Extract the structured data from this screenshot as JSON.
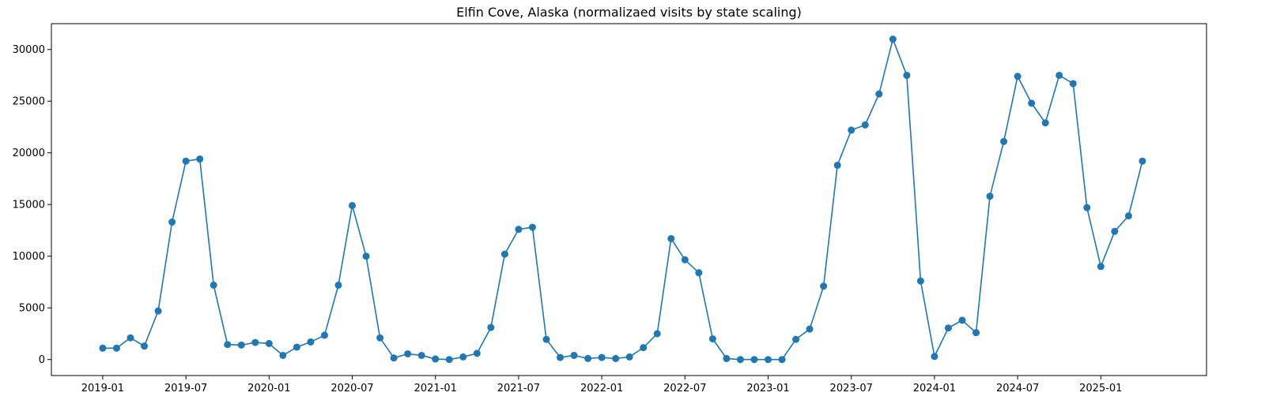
{
  "chart_data": {
    "type": "line",
    "title": "Elfin Cove, Alaska (normalizaed visits by state scaling)",
    "xlabel": "",
    "ylabel": "",
    "color": "#1f77b4",
    "grid": false,
    "x": [
      "2019-01",
      "2019-02",
      "2019-03",
      "2019-04",
      "2019-05",
      "2019-06",
      "2019-07",
      "2019-08",
      "2019-09",
      "2019-10",
      "2019-11",
      "2019-12",
      "2020-01",
      "2020-02",
      "2020-03",
      "2020-04",
      "2020-05",
      "2020-06",
      "2020-07",
      "2020-08",
      "2020-09",
      "2020-10",
      "2020-11",
      "2020-12",
      "2021-01",
      "2021-02",
      "2021-03",
      "2021-04",
      "2021-05",
      "2021-06",
      "2021-07",
      "2021-08",
      "2021-09",
      "2021-10",
      "2021-11",
      "2021-12",
      "2022-01",
      "2022-02",
      "2022-03",
      "2022-04",
      "2022-05",
      "2022-06",
      "2022-07",
      "2022-08",
      "2022-09",
      "2022-10",
      "2022-11",
      "2022-12",
      "2023-01",
      "2023-02",
      "2023-03",
      "2023-04",
      "2023-05",
      "2023-06",
      "2023-07",
      "2023-08",
      "2023-09",
      "2023-10",
      "2023-11",
      "2023-12",
      "2024-01",
      "2024-02",
      "2024-03",
      "2024-04",
      "2024-05",
      "2024-06",
      "2024-07",
      "2024-08",
      "2024-09",
      "2024-10",
      "2024-11",
      "2024-12",
      "2025-01",
      "2025-02",
      "2025-03",
      "2025-04"
    ],
    "values": [
      1100,
      1100,
      2100,
      1300,
      4700,
      13300,
      19200,
      19400,
      7200,
      1450,
      1400,
      1650,
      1550,
      400,
      1200,
      1700,
      2350,
      7200,
      14900,
      10000,
      2100,
      150,
      550,
      400,
      50,
      0,
      250,
      600,
      3100,
      10200,
      12600,
      12800,
      1950,
      200,
      400,
      100,
      200,
      100,
      250,
      1150,
      2500,
      11700,
      9650,
      8400,
      2000,
      100,
      0,
      0,
      0,
      0,
      1950,
      2950,
      7100,
      18800,
      22200,
      22700,
      25700,
      31000,
      27500,
      7600,
      300,
      3050,
      3800,
      2600,
      15800,
      21100,
      27400,
      24800,
      22900,
      27500,
      26700,
      14700,
      9000,
      12400,
      13900,
      19200
    ],
    "x_tick_labels": [
      "2019-01",
      "2019-07",
      "2020-01",
      "2020-07",
      "2021-01",
      "2021-07",
      "2022-01",
      "2022-07",
      "2023-01",
      "2023-07",
      "2024-01",
      "2024-07",
      "2025-01"
    ],
    "y_ticks": [
      0,
      5000,
      10000,
      15000,
      20000,
      25000,
      30000
    ],
    "y_tick_labels": [
      "0",
      "5000",
      "10000",
      "15000",
      "20000",
      "25000",
      "30000"
    ],
    "ylim": [
      -1550,
      32500
    ],
    "xlim": [
      "2018-09-10",
      "2025-08-20"
    ]
  }
}
